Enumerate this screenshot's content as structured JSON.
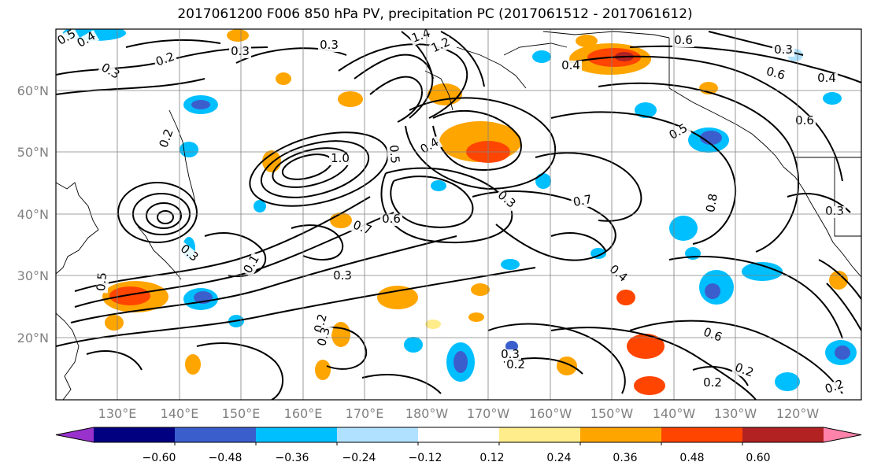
{
  "title": "2017061200 F006 850 hPa PV, precipitation PC (2017061512 - 2017061612)",
  "map": {
    "lat_ticks": [
      "60°N",
      "50°N",
      "40°N",
      "30°N",
      "20°N"
    ],
    "lon_ticks": [
      "130°E",
      "140°E",
      "150°E",
      "160°E",
      "170°E",
      "180°W",
      "170°W",
      "160°W",
      "150°W",
      "140°W",
      "130°W",
      "120°W"
    ],
    "grid": true,
    "contour_labels": [
      "0.5",
      "0.4",
      "0.2",
      "0.3",
      "0.3",
      "1.4",
      "1.2",
      "0.6",
      "0.3",
      "0.4",
      "0.6",
      "0.5",
      "0.2",
      "1.0",
      "0.4",
      "0.5",
      "0.7",
      "0.6",
      "0.3",
      "0.7",
      "0.8",
      "0.3",
      "0.4",
      "0.3",
      "0.3",
      "0.2",
      "0.3",
      "0.3",
      "0.2",
      "0.6",
      "0.2",
      "0.2",
      "0.2",
      "0.5",
      "0.1",
      "0.3",
      "0.4",
      "0.6"
    ]
  },
  "colorbar": {
    "labels": [
      "−0.60",
      "−0.48",
      "−0.36",
      "−0.24",
      "−0.12",
      "0.12",
      "0.24",
      "0.36",
      "0.48",
      "0.60"
    ],
    "colors": [
      "#9932cc",
      "#000080",
      "#3a5fcd",
      "#00bfff",
      "#b0e2ff",
      "#ffffff",
      "#ffec8b",
      "#ffa500",
      "#ff4500",
      "#b22222",
      "#ff82ab"
    ]
  }
}
